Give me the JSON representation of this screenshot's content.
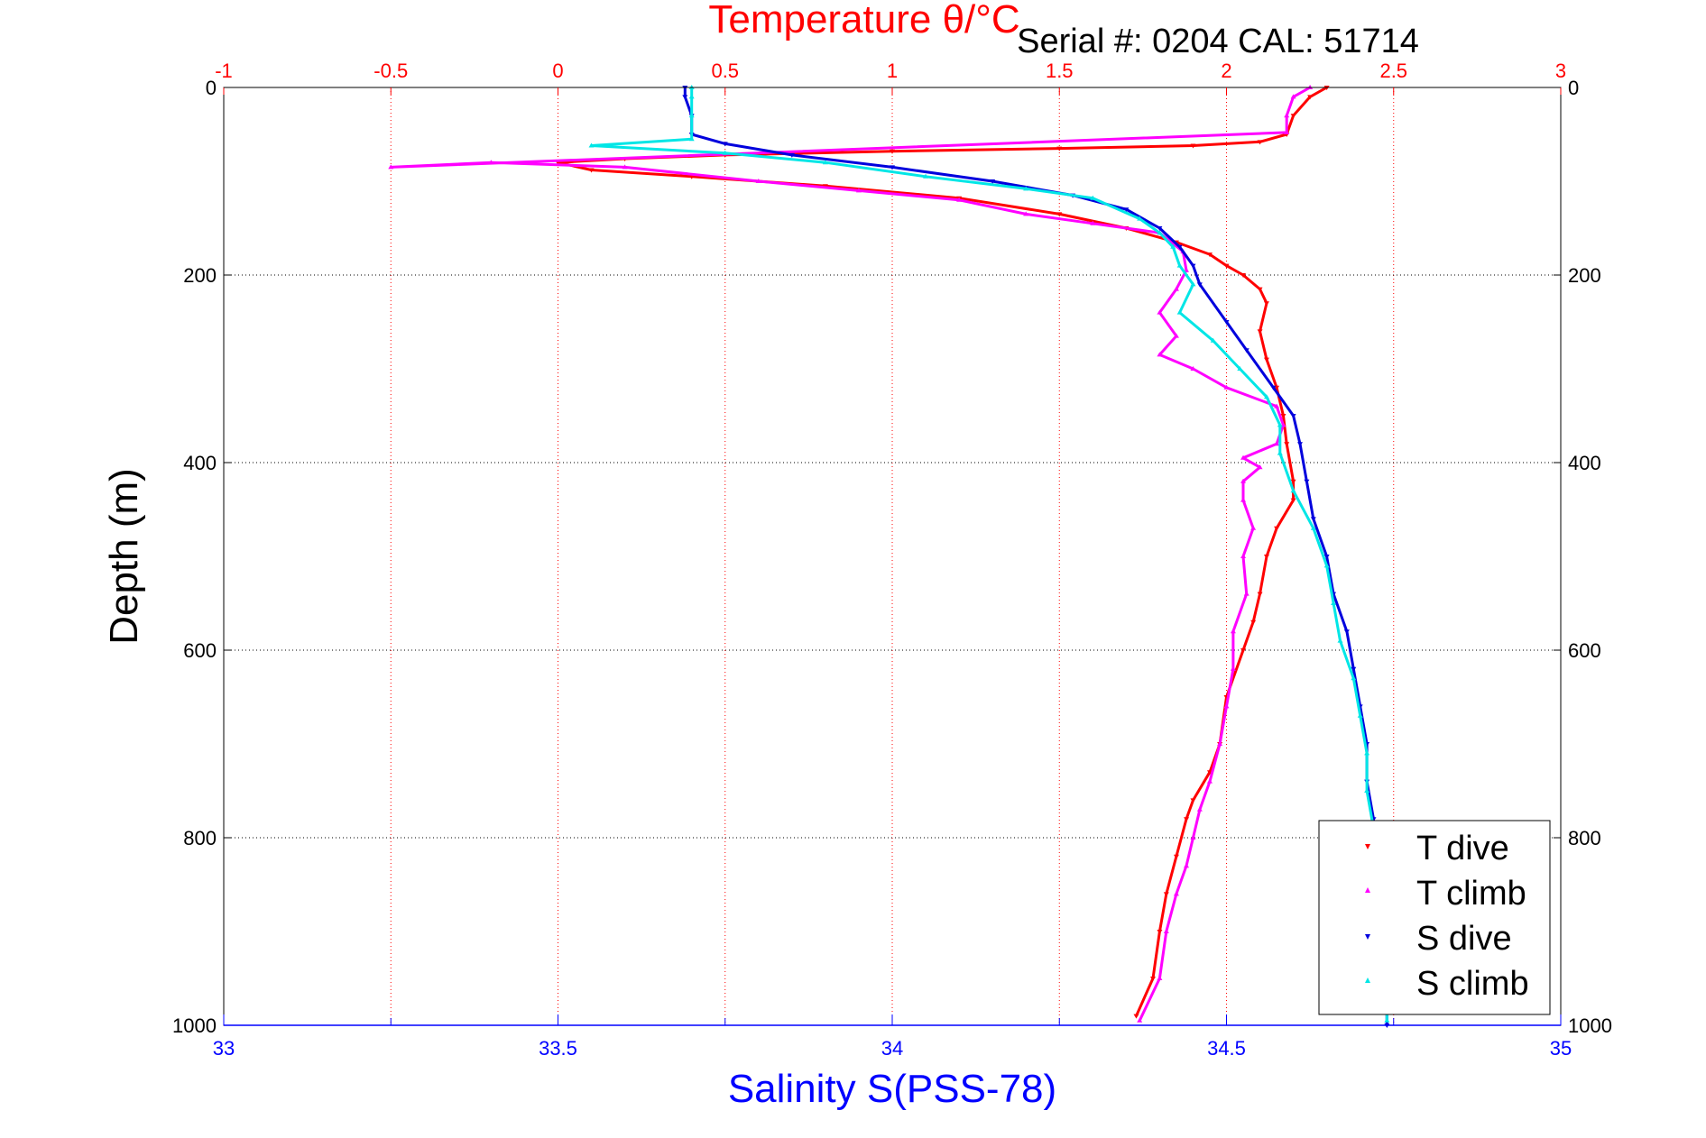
{
  "chart_data": {
    "type": "scatter",
    "title": "Temperature θ/°C",
    "subtitle": "Serial #: 0204  CAL: 51714",
    "xlabel": "Salinity S(PSS-78)",
    "ylabel": "Depth (m)",
    "x_bottom": {
      "label": "Salinity S(PSS-78)",
      "range": [
        33,
        35
      ],
      "ticks": [
        "33",
        "33.5",
        "34",
        "34.5",
        "35"
      ],
      "color": "#0000ff"
    },
    "x_top": {
      "label": "Temperature θ/°C",
      "range": [
        -1,
        3
      ],
      "ticks": [
        "-1",
        "-0.5",
        "0",
        "0.5",
        "1",
        "1.5",
        "2",
        "2.5",
        "3"
      ],
      "color": "#ff0000"
    },
    "y": {
      "label": "Depth (m)",
      "range": [
        0,
        1000
      ],
      "reversed": true,
      "ticks": [
        "0",
        "200",
        "400",
        "600",
        "800",
        "1000"
      ]
    },
    "grid": true,
    "legend_position": "bottom-right",
    "legend": [
      {
        "label": "T dive",
        "color": "#ff0000"
      },
      {
        "label": "T climb",
        "color": "#ff00ff"
      },
      {
        "label": "S dive",
        "color": "#0000dd"
      },
      {
        "label": "S climb",
        "color": "#00e6e6"
      }
    ],
    "series": [
      {
        "name": "T dive",
        "axis": "temperature",
        "color": "#ff0000",
        "marker": "triangle-down",
        "points": [
          [
            2.3,
            0
          ],
          [
            2.25,
            10
          ],
          [
            2.2,
            30
          ],
          [
            2.18,
            50
          ],
          [
            2.1,
            58
          ],
          [
            1.9,
            62
          ],
          [
            1.5,
            65
          ],
          [
            1.0,
            68
          ],
          [
            0.5,
            72
          ],
          [
            0.2,
            76
          ],
          [
            0.0,
            80
          ],
          [
            0.1,
            88
          ],
          [
            0.4,
            95
          ],
          [
            0.8,
            105
          ],
          [
            1.2,
            118
          ],
          [
            1.5,
            135
          ],
          [
            1.7,
            150
          ],
          [
            1.85,
            165
          ],
          [
            1.95,
            178
          ],
          [
            2.0,
            190
          ],
          [
            2.05,
            200
          ],
          [
            2.1,
            215
          ],
          [
            2.12,
            230
          ],
          [
            2.1,
            260
          ],
          [
            2.12,
            290
          ],
          [
            2.15,
            320
          ],
          [
            2.17,
            350
          ],
          [
            2.18,
            380
          ],
          [
            2.2,
            420
          ],
          [
            2.2,
            440
          ],
          [
            2.15,
            470
          ],
          [
            2.12,
            500
          ],
          [
            2.1,
            540
          ],
          [
            2.08,
            570
          ],
          [
            2.05,
            600
          ],
          [
            2.0,
            650
          ],
          [
            1.98,
            700
          ],
          [
            1.95,
            730
          ],
          [
            1.9,
            760
          ],
          [
            1.88,
            780
          ],
          [
            1.85,
            820
          ],
          [
            1.82,
            860
          ],
          [
            1.8,
            900
          ],
          [
            1.78,
            950
          ],
          [
            1.73,
            990
          ]
        ]
      },
      {
        "name": "T climb",
        "axis": "temperature",
        "color": "#ff00ff",
        "marker": "triangle-up",
        "points": [
          [
            2.25,
            0
          ],
          [
            2.2,
            10
          ],
          [
            2.18,
            30
          ],
          [
            2.18,
            48
          ],
          [
            -0.5,
            85
          ],
          [
            -0.2,
            80
          ],
          [
            0.2,
            85
          ],
          [
            0.6,
            100
          ],
          [
            0.9,
            110
          ],
          [
            1.2,
            120
          ],
          [
            1.4,
            135
          ],
          [
            1.6,
            145
          ],
          [
            1.8,
            155
          ],
          [
            1.87,
            175
          ],
          [
            1.88,
            195
          ],
          [
            1.85,
            215
          ],
          [
            1.8,
            240
          ],
          [
            1.85,
            265
          ],
          [
            1.8,
            285
          ],
          [
            1.9,
            300
          ],
          [
            2.0,
            320
          ],
          [
            2.15,
            340
          ],
          [
            2.17,
            360
          ],
          [
            2.15,
            380
          ],
          [
            2.05,
            395
          ],
          [
            2.1,
            405
          ],
          [
            2.05,
            420
          ],
          [
            2.05,
            440
          ],
          [
            2.08,
            470
          ],
          [
            2.05,
            500
          ],
          [
            2.06,
            540
          ],
          [
            2.02,
            580
          ],
          [
            2.02,
            620
          ],
          [
            2.0,
            660
          ],
          [
            1.98,
            700
          ],
          [
            1.95,
            740
          ],
          [
            1.92,
            770
          ],
          [
            1.9,
            800
          ],
          [
            1.88,
            830
          ],
          [
            1.85,
            860
          ],
          [
            1.82,
            900
          ],
          [
            1.8,
            950
          ],
          [
            1.74,
            995
          ]
        ]
      },
      {
        "name": "S dive",
        "axis": "salinity",
        "color": "#0000dd",
        "marker": "triangle-down",
        "points": [
          [
            33.69,
            0
          ],
          [
            33.69,
            10
          ],
          [
            33.7,
            30
          ],
          [
            33.7,
            50
          ],
          [
            33.75,
            60
          ],
          [
            33.85,
            72
          ],
          [
            34.0,
            85
          ],
          [
            34.15,
            100
          ],
          [
            34.27,
            115
          ],
          [
            34.35,
            130
          ],
          [
            34.4,
            150
          ],
          [
            34.43,
            170
          ],
          [
            34.45,
            190
          ],
          [
            34.46,
            210
          ],
          [
            34.5,
            250
          ],
          [
            34.53,
            280
          ],
          [
            34.57,
            320
          ],
          [
            34.6,
            350
          ],
          [
            34.61,
            380
          ],
          [
            34.62,
            420
          ],
          [
            34.63,
            460
          ],
          [
            34.65,
            500
          ],
          [
            34.66,
            540
          ],
          [
            34.68,
            580
          ],
          [
            34.69,
            620
          ],
          [
            34.7,
            660
          ],
          [
            34.71,
            700
          ],
          [
            34.71,
            740
          ],
          [
            34.72,
            780
          ],
          [
            34.72,
            820
          ],
          [
            34.73,
            860
          ],
          [
            34.73,
            900
          ],
          [
            34.74,
            950
          ],
          [
            34.74,
            1000
          ]
        ]
      },
      {
        "name": "S climb",
        "axis": "salinity",
        "color": "#00e6e6",
        "marker": "triangle-up",
        "points": [
          [
            33.7,
            0
          ],
          [
            33.7,
            10
          ],
          [
            33.7,
            30
          ],
          [
            33.7,
            55
          ],
          [
            33.55,
            62
          ],
          [
            33.75,
            70
          ],
          [
            33.9,
            80
          ],
          [
            34.05,
            95
          ],
          [
            34.2,
            108
          ],
          [
            34.3,
            118
          ],
          [
            34.37,
            140
          ],
          [
            34.4,
            155
          ],
          [
            34.42,
            170
          ],
          [
            34.43,
            190
          ],
          [
            34.45,
            210
          ],
          [
            34.43,
            240
          ],
          [
            34.48,
            270
          ],
          [
            34.52,
            300
          ],
          [
            34.56,
            330
          ],
          [
            34.58,
            360
          ],
          [
            34.58,
            390
          ],
          [
            34.6,
            430
          ],
          [
            34.63,
            470
          ],
          [
            34.65,
            510
          ],
          [
            34.66,
            550
          ],
          [
            34.67,
            590
          ],
          [
            34.69,
            630
          ],
          [
            34.7,
            670
          ],
          [
            34.71,
            710
          ],
          [
            34.71,
            750
          ],
          [
            34.72,
            790
          ],
          [
            34.72,
            830
          ],
          [
            34.73,
            870
          ],
          [
            34.73,
            910
          ],
          [
            34.74,
            950
          ],
          [
            34.74,
            995
          ]
        ]
      }
    ]
  }
}
